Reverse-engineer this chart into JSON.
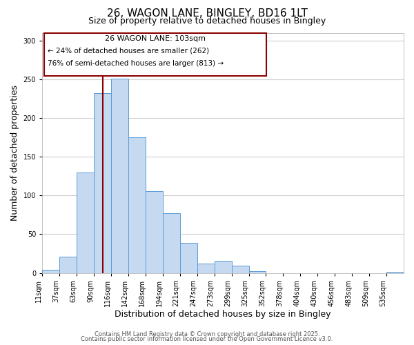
{
  "title": "26, WAGON LANE, BINGLEY, BD16 1LT",
  "subtitle": "Size of property relative to detached houses in Bingley",
  "xlabel": "Distribution of detached houses by size in Bingley",
  "ylabel": "Number of detached properties",
  "bar_labels": [
    "11sqm",
    "37sqm",
    "63sqm",
    "90sqm",
    "116sqm",
    "142sqm",
    "168sqm",
    "194sqm",
    "221sqm",
    "247sqm",
    "273sqm",
    "299sqm",
    "325sqm",
    "352sqm",
    "378sqm",
    "404sqm",
    "430sqm",
    "456sqm",
    "483sqm",
    "509sqm",
    "535sqm"
  ],
  "bar_values": [
    4,
    21,
    130,
    232,
    251,
    175,
    106,
    77,
    39,
    12,
    16,
    9,
    2,
    0,
    0,
    0,
    0,
    0,
    0,
    0,
    1
  ],
  "bar_color": "#c5d9f1",
  "bar_edge_color": "#5b9bd5",
  "background_color": "#ffffff",
  "grid_color": "#d0d0d0",
  "ylim": [
    0,
    310
  ],
  "yticks": [
    0,
    50,
    100,
    150,
    200,
    250,
    300
  ],
  "property_line_x": 3.5,
  "property_line_color": "#8b0000",
  "annotation_text_line1": "26 WAGON LANE: 103sqm",
  "annotation_text_line2": "← 24% of detached houses are smaller (262)",
  "annotation_text_line3": "76% of semi-detached houses are larger (813) →",
  "annotation_box_color": "#ffffff",
  "annotation_box_edge": "#8b0000",
  "footer_line1": "Contains HM Land Registry data © Crown copyright and database right 2025.",
  "footer_line2": "Contains public sector information licensed under the Open Government Licence v3.0.",
  "title_fontsize": 11,
  "subtitle_fontsize": 9,
  "axis_label_fontsize": 9,
  "tick_fontsize": 7,
  "annotation_fontsize": 8,
  "footer_fontsize": 6
}
